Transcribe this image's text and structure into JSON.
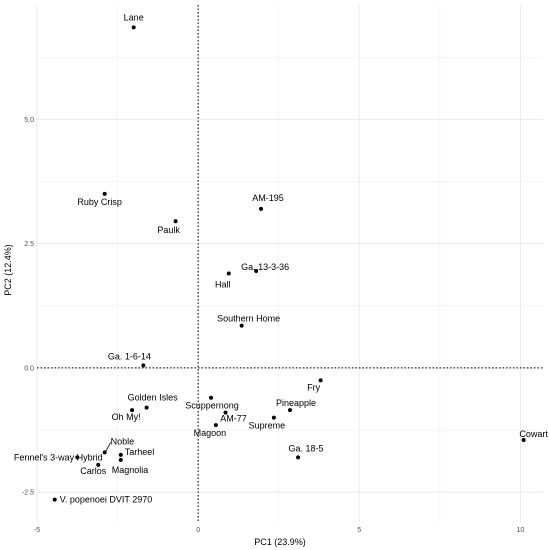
{
  "chart_data": {
    "type": "scatter",
    "title": "",
    "xlabel": "PC1 (23.9%)",
    "ylabel": "PC2 (12.4%)",
    "xlim": [
      -5,
      10.7
    ],
    "ylim": [
      -3.1,
      7.3
    ],
    "x_ticks": [
      -5,
      0,
      5,
      10
    ],
    "y_ticks": [
      -2.5,
      0.0,
      2.5,
      5.0
    ],
    "x_tick_labels": [
      "-5",
      "0",
      "5",
      "10"
    ],
    "y_tick_labels": [
      "-2.5",
      "0.0",
      "2.5",
      "5.0"
    ],
    "grid": true,
    "legend": "none",
    "reference_lines": {
      "x": 0,
      "y": 0,
      "style": "dotted"
    },
    "points": [
      {
        "label": "Lane",
        "x": -2.0,
        "y": 6.85
      },
      {
        "label": "Ruby Crisp",
        "x": -2.9,
        "y": 3.5
      },
      {
        "label": "Paulk",
        "x": -0.7,
        "y": 2.95
      },
      {
        "label": "AM-195",
        "x": 1.95,
        "y": 3.2
      },
      {
        "label": "Ga. 13-3-36",
        "x": 1.8,
        "y": 1.95
      },
      {
        "label": "Hall",
        "x": 0.95,
        "y": 1.9
      },
      {
        "label": "Southern Home",
        "x": 1.35,
        "y": 0.85
      },
      {
        "label": "Ga. 1-6-14",
        "x": -1.7,
        "y": 0.05
      },
      {
        "label": "Fry",
        "x": 3.8,
        "y": -0.25
      },
      {
        "label": "Scuppernong",
        "x": 0.4,
        "y": -0.6
      },
      {
        "label": "Golden Isles",
        "x": -1.6,
        "y": -0.8
      },
      {
        "label": "Oh My!",
        "x": -2.05,
        "y": -0.85
      },
      {
        "label": "Pineapple",
        "x": 2.85,
        "y": -0.85
      },
      {
        "label": "AM-77",
        "x": 0.85,
        "y": -0.9
      },
      {
        "label": "Supreme",
        "x": 2.35,
        "y": -1.0
      },
      {
        "label": "Magoon",
        "x": 0.55,
        "y": -1.15
      },
      {
        "label": "Cowart",
        "x": 10.1,
        "y": -1.45
      },
      {
        "label": "Noble",
        "x": -2.9,
        "y": -1.7
      },
      {
        "label": "Tarheel",
        "x": -2.4,
        "y": -1.75
      },
      {
        "label": "Fennel's 3-way Hybrid",
        "x": -3.75,
        "y": -1.8
      },
      {
        "label": "Ga. 18-5",
        "x": 3.1,
        "y": -1.8
      },
      {
        "label": "Magnolia",
        "x": -2.4,
        "y": -1.85
      },
      {
        "label": "Carlos",
        "x": -3.1,
        "y": -1.95
      },
      {
        "label": "V. popenoei DVIT 2970",
        "x": -4.45,
        "y": -2.65
      }
    ]
  },
  "colors": {
    "background": "#ffffff",
    "grid": "#ebebeb",
    "point": "#000000",
    "reference_line": "#000000",
    "tick_text": "#4d4d4d"
  }
}
